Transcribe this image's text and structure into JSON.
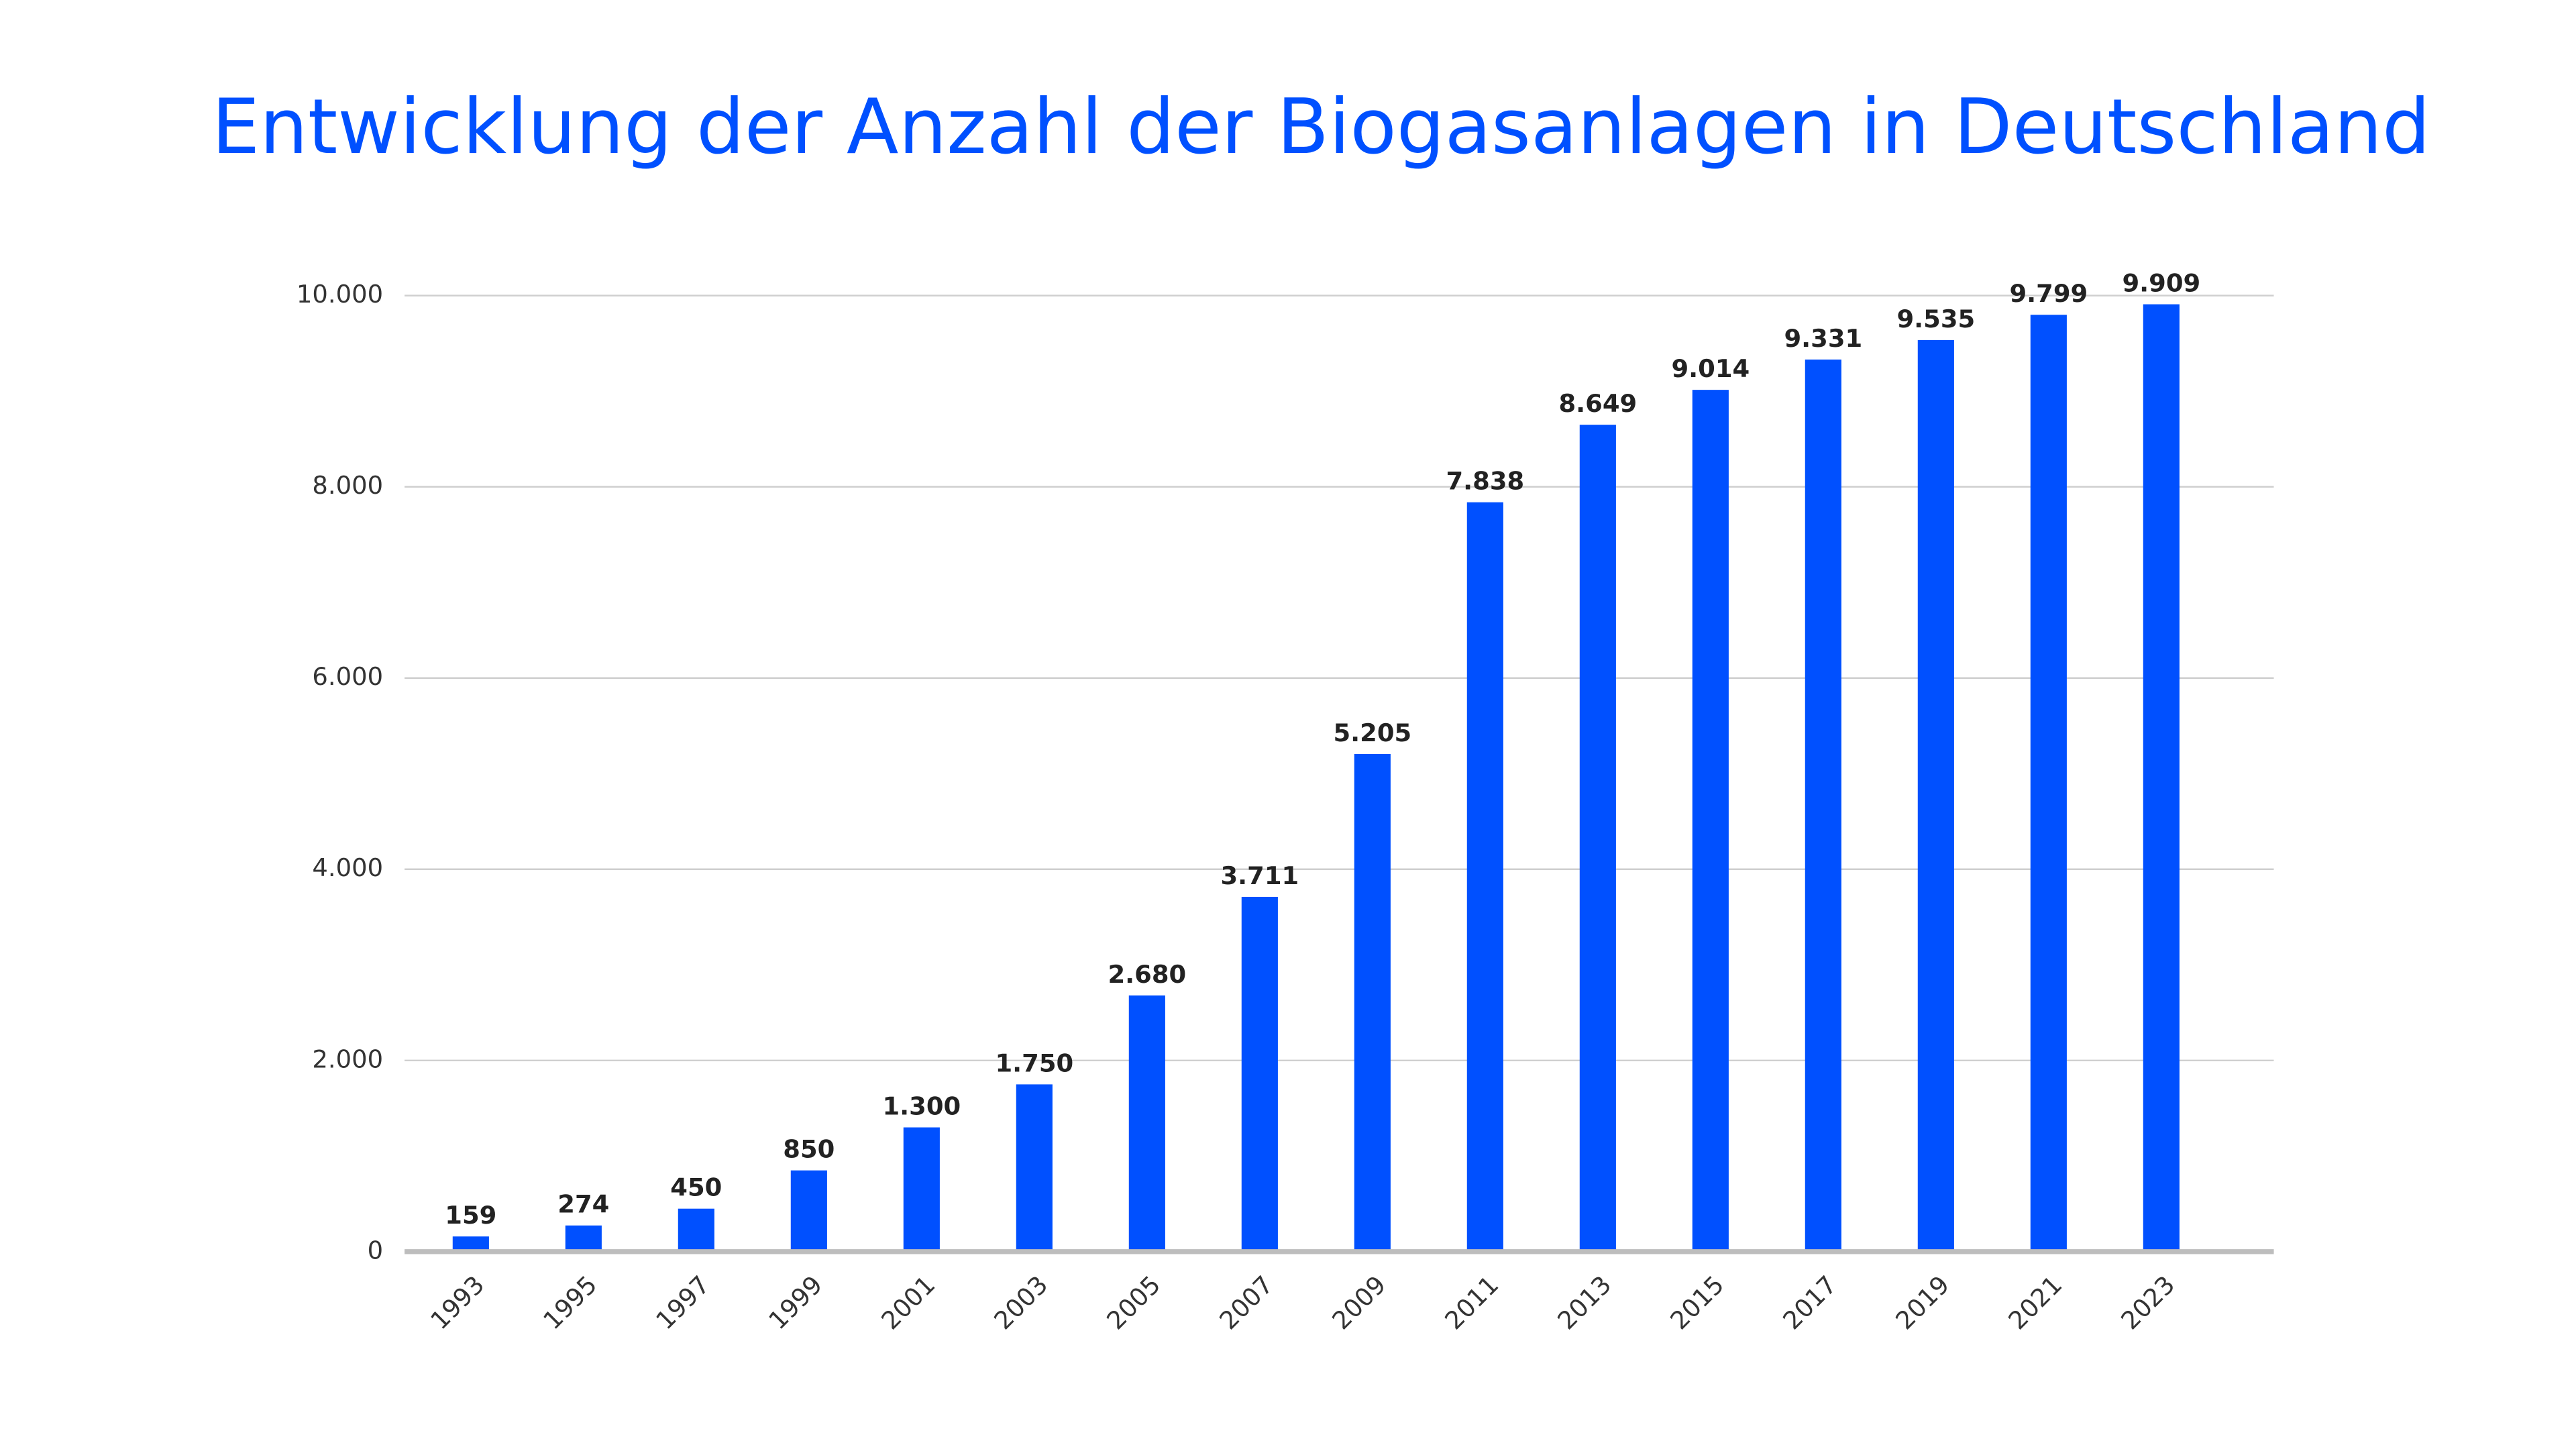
{
  "chart_data": {
    "type": "bar",
    "title": "Entwicklung der Anzahl der Biogasanlagen in Deutschland",
    "categories": [
      "1993",
      "1995",
      "1997",
      "1999",
      "2001",
      "2003",
      "2005",
      "2007",
      "2009",
      "2011",
      "2013",
      "2015",
      "2017",
      "2019",
      "2021",
      "2023"
    ],
    "values": [
      159,
      274,
      450,
      850,
      1300,
      1750,
      2680,
      3711,
      5205,
      7838,
      8649,
      9014,
      9331,
      9535,
      9799,
      9909
    ],
    "value_labels": [
      "159",
      "274",
      "450",
      "850",
      "1.300",
      "1.750",
      "2.680",
      "3.711",
      "5.205",
      "7.838",
      "8.649",
      "9.014",
      "9.331",
      "9.535",
      "9.799",
      "9.909"
    ],
    "color": "#0050ff",
    "ylim": [
      0,
      10000
    ],
    "yticks": [
      0,
      {
        "value": 2000,
        "label": "2.000"
      },
      {
        "value": 4000,
        "label": "4.000"
      },
      {
        "value": 6000,
        "label": "6.000"
      },
      {
        "value": 8000,
        "label": "8.000"
      },
      {
        "value": 10000,
        "label": "10.000"
      }
    ],
    "grid": true
  }
}
